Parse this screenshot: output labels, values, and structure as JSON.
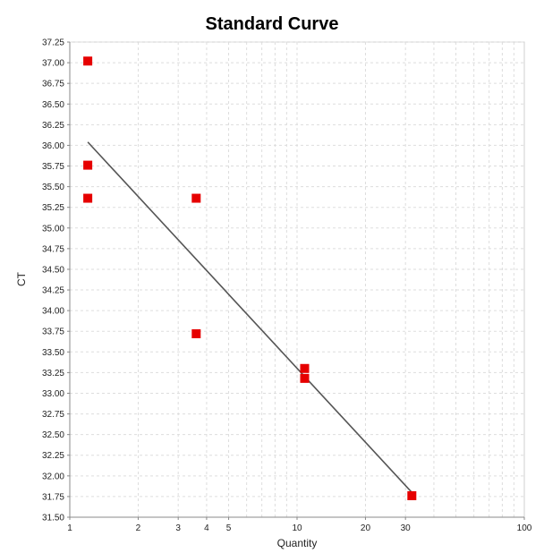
{
  "chart_data": {
    "type": "scatter",
    "title": "Standard Curve",
    "xlabel": "Quantity",
    "ylabel": "CT",
    "xscale": "log",
    "xlim": [
      1,
      100
    ],
    "ylim": [
      31.5,
      37.25
    ],
    "x_ticks": [
      1,
      2,
      3,
      4,
      5,
      10,
      20,
      30,
      100
    ],
    "y_ticks": [
      31.5,
      31.75,
      32.0,
      32.25,
      32.5,
      32.75,
      33.0,
      33.25,
      33.5,
      33.75,
      34.0,
      34.25,
      34.5,
      34.75,
      35.0,
      35.25,
      35.5,
      35.75,
      36.0,
      36.25,
      36.5,
      36.75,
      37.0,
      37.25
    ],
    "grid": true,
    "marker_color": "#e60000",
    "line_color": "#555555",
    "points": [
      {
        "x": 1.2,
        "y": 37.02
      },
      {
        "x": 1.2,
        "y": 35.76
      },
      {
        "x": 1.2,
        "y": 35.36
      },
      {
        "x": 3.6,
        "y": 35.36
      },
      {
        "x": 3.6,
        "y": 33.72
      },
      {
        "x": 10.8,
        "y": 33.3
      },
      {
        "x": 10.8,
        "y": 33.18
      },
      {
        "x": 32.0,
        "y": 31.76
      }
    ],
    "fit_line": [
      {
        "x": 1.2,
        "y": 36.04
      },
      {
        "x": 32.0,
        "y": 31.8
      }
    ]
  }
}
